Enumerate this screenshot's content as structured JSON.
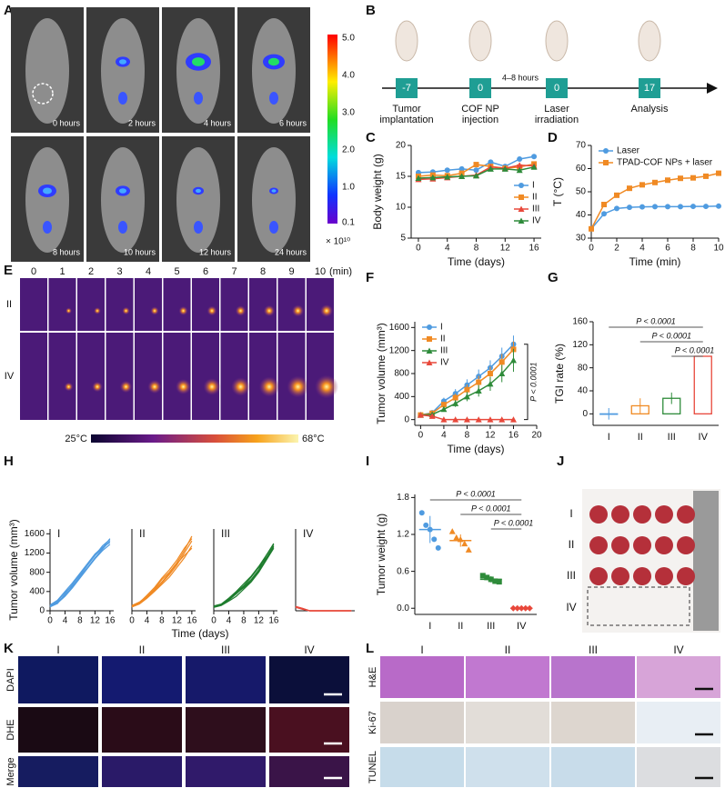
{
  "figure": {
    "panel_labels": [
      "A",
      "B",
      "C",
      "D",
      "E",
      "F",
      "G",
      "H",
      "I",
      "J",
      "K",
      "L"
    ]
  },
  "panel_a": {
    "times": [
      "0 hours",
      "2 hours",
      "4 hours",
      "6 hours",
      "8 hours",
      "10 hours",
      "12 hours",
      "24 hours"
    ],
    "colorbar_labels": [
      "5.0",
      "4.0",
      "3.0",
      "2.0",
      "1.0",
      "0.1"
    ],
    "colorbar_unit": "× 10¹⁰"
  },
  "panel_b": {
    "steps": [
      {
        "day": "-7",
        "label": [
          "Tumor",
          "implantation"
        ]
      },
      {
        "day": "0",
        "label": [
          "COF NP",
          "injection"
        ]
      },
      {
        "day": "0",
        "label": [
          "Laser",
          "irradiation"
        ]
      },
      {
        "day": "17",
        "label": [
          "Analysis"
        ]
      }
    ],
    "interval": "4–8 hours"
  },
  "panel_e": {
    "minutes": [
      "0",
      "1",
      "2",
      "3",
      "4",
      "5",
      "6",
      "7",
      "8",
      "9",
      "10"
    ],
    "unit": "(min)",
    "rows": [
      "II",
      "IV"
    ],
    "scale": [
      "25°C",
      "68°C"
    ]
  },
  "panel_h": {
    "ylabel": "Tumor volume (mm³)",
    "xlabel": "Time (days)"
  },
  "panel_j": {
    "rows": [
      "I",
      "II",
      "III",
      "IV"
    ]
  },
  "panel_k": {
    "columns": [
      "I",
      "II",
      "III",
      "IV"
    ],
    "rows": [
      "DAPI",
      "DHE",
      "Merge"
    ]
  },
  "panel_l": {
    "columns": [
      "I",
      "II",
      "III",
      "IV"
    ],
    "rows": [
      "H&E",
      "Ki-67",
      "TUNEL"
    ]
  },
  "chart_data": [
    {
      "type": "line",
      "ylabel": "Body weight (g)",
      "xlabel": "Time (days)",
      "x": [
        0,
        2,
        4,
        6,
        8,
        10,
        12,
        14,
        16
      ],
      "xlim": [
        -1,
        17
      ],
      "xticks": [
        0,
        4,
        8,
        12,
        16
      ],
      "ylim": [
        5,
        20
      ],
      "yticks": [
        5,
        10,
        15,
        20
      ],
      "legend": "lower right",
      "series": [
        {
          "name": "I",
          "color": "#4f9be0",
          "marker": "circle",
          "values": [
            15.6,
            15.7,
            16.0,
            16.2,
            16.0,
            17.3,
            16.6,
            17.8,
            18.2
          ]
        },
        {
          "name": "II",
          "color": "#f08a24",
          "marker": "square",
          "values": [
            15.0,
            15.2,
            15.1,
            15.5,
            16.9,
            16.6,
            16.3,
            16.5,
            17.0
          ]
        },
        {
          "name": "III",
          "color": "#e8483b",
          "marker": "triangle",
          "values": [
            14.5,
            14.6,
            14.8,
            15.0,
            15.2,
            16.5,
            16.3,
            16.8,
            16.7
          ]
        },
        {
          "name": "IV",
          "color": "#2e8b3a",
          "marker": "triangle",
          "values": [
            14.7,
            14.8,
            14.9,
            15.0,
            15.1,
            16.2,
            16.2,
            16.0,
            16.5
          ]
        }
      ]
    },
    {
      "type": "line",
      "ylabel": "T (°C)",
      "xlabel": "Time (min)",
      "x": [
        0,
        1,
        2,
        3,
        4,
        5,
        6,
        7,
        8,
        9,
        10
      ],
      "xlim": [
        0,
        10
      ],
      "xticks": [
        0,
        2,
        4,
        6,
        8,
        10
      ],
      "ylim": [
        30,
        70
      ],
      "yticks": [
        30,
        40,
        50,
        60,
        70
      ],
      "legend": "upper left",
      "series": [
        {
          "name": "Laser",
          "color": "#4f9be0",
          "marker": "circle",
          "values": [
            34,
            40.5,
            42.8,
            43.3,
            43.5,
            43.6,
            43.6,
            43.6,
            43.7,
            43.7,
            43.8
          ]
        },
        {
          "name": "TPAD-COF NPs + laser",
          "color": "#f08a24",
          "marker": "square",
          "values": [
            34,
            44.5,
            48.5,
            51.5,
            53,
            54,
            55,
            55.8,
            56,
            56.7,
            58
          ]
        }
      ]
    },
    {
      "type": "line",
      "ylabel": "Tumor volume (mm³)",
      "xlabel": "Time (days)",
      "x": [
        0,
        2,
        4,
        6,
        8,
        10,
        12,
        14,
        16
      ],
      "xlim": [
        -1,
        20
      ],
      "xticks": [
        0,
        4,
        8,
        12,
        16,
        20
      ],
      "ylim": [
        -100,
        1700
      ],
      "yticks": [
        0,
        400,
        800,
        1200,
        1600
      ],
      "legend": "upper left",
      "annotation": "P < 0.0001",
      "series": [
        {
          "name": "I",
          "color": "#4f9be0",
          "marker": "circle",
          "values": [
            80,
            120,
            320,
            450,
            600,
            750,
            900,
            1100,
            1310
          ],
          "errors": [
            20,
            30,
            60,
            80,
            100,
            120,
            130,
            150,
            150
          ]
        },
        {
          "name": "II",
          "color": "#f08a24",
          "marker": "square",
          "values": [
            80,
            110,
            260,
            380,
            520,
            650,
            800,
            1000,
            1220
          ],
          "errors": [
            20,
            30,
            50,
            70,
            90,
            110,
            120,
            140,
            140
          ]
        },
        {
          "name": "III",
          "color": "#2e8b3a",
          "marker": "triangle",
          "values": [
            80,
            90,
            180,
            280,
            400,
            500,
            620,
            800,
            1030
          ],
          "errors": [
            20,
            25,
            40,
            60,
            80,
            100,
            120,
            150,
            200
          ]
        },
        {
          "name": "IV",
          "color": "#e8483b",
          "marker": "triangle",
          "values": [
            80,
            60,
            0,
            0,
            0,
            0,
            0,
            0,
            0
          ]
        }
      ]
    },
    {
      "type": "bar",
      "ylabel": "TGI rate (%)",
      "categories": [
        "I",
        "II",
        "III",
        "IV"
      ],
      "values": [
        0,
        14,
        27,
        100
      ],
      "errors": [
        10,
        13,
        10,
        0
      ],
      "colors": [
        "#4f9be0",
        "#f08a24",
        "#2e8b3a",
        "#e8483b"
      ],
      "ylim": [
        -20,
        160
      ],
      "yticks": [
        0,
        40,
        80,
        120,
        160
      ],
      "annotations": [
        "P < 0.0001",
        "P < 0.0001",
        "P < 0.0001"
      ]
    },
    {
      "type": "line",
      "title": "I",
      "x": [
        0,
        2,
        4,
        6,
        8,
        10,
        12,
        14,
        16
      ],
      "xlim": [
        0,
        17
      ],
      "xticks": [
        0,
        4,
        8,
        12,
        16
      ],
      "ylim": [
        0,
        1700
      ],
      "yticks": [
        0,
        400,
        800,
        1200,
        1600
      ],
      "series": [
        {
          "color": "#4f9be0",
          "values": [
            80,
            150,
            350,
            550,
            750,
            950,
            1150,
            1300,
            1500
          ]
        },
        {
          "color": "#4f9be0",
          "values": [
            100,
            200,
            380,
            520,
            700,
            900,
            1100,
            1280,
            1450
          ]
        },
        {
          "color": "#4f9be0",
          "values": [
            80,
            180,
            320,
            500,
            720,
            950,
            1150,
            1350,
            1480
          ]
        },
        {
          "color": "#4f9be0",
          "values": [
            120,
            220,
            400,
            580,
            780,
            980,
            1180,
            1320,
            1420
          ]
        },
        {
          "color": "#4f9be0",
          "values": [
            90,
            160,
            300,
            480,
            680,
            880,
            1080,
            1250,
            1380
          ]
        }
      ]
    },
    {
      "type": "line",
      "title": "II",
      "x": [
        0,
        2,
        4,
        6,
        8,
        10,
        12,
        14,
        16
      ],
      "xlim": [
        0,
        17
      ],
      "xticks": [
        0,
        4,
        8,
        12,
        16
      ],
      "ylim": [
        0,
        1700
      ],
      "series": [
        {
          "color": "#f08a24",
          "values": [
            80,
            150,
            300,
            450,
            650,
            800,
            1000,
            1250,
            1550
          ]
        },
        {
          "color": "#f08a24",
          "values": [
            100,
            160,
            280,
            420,
            580,
            750,
            950,
            1200,
            1450
          ]
        },
        {
          "color": "#f08a24",
          "values": [
            80,
            140,
            260,
            400,
            550,
            700,
            900,
            1100,
            1350
          ]
        },
        {
          "color": "#f08a24",
          "values": [
            90,
            170,
            320,
            480,
            680,
            850,
            1050,
            1300,
            1500
          ]
        },
        {
          "color": "#f08a24",
          "values": [
            110,
            180,
            300,
            430,
            600,
            780,
            980,
            1150,
            1300
          ]
        }
      ]
    },
    {
      "type": "line",
      "title": "III",
      "x": [
        0,
        2,
        4,
        6,
        8,
        10,
        12,
        14,
        16
      ],
      "xlim": [
        0,
        17
      ],
      "xticks": [
        0,
        4,
        8,
        12,
        16
      ],
      "ylim": [
        0,
        1700
      ],
      "series": [
        {
          "color": "#1e7d2e",
          "values": [
            80,
            120,
            220,
            350,
            500,
            650,
            850,
            1150,
            1400
          ]
        },
        {
          "color": "#1e7d2e",
          "values": [
            90,
            130,
            250,
            380,
            520,
            700,
            900,
            1100,
            1350
          ]
        },
        {
          "color": "#1e7d2e",
          "values": [
            70,
            110,
            200,
            300,
            450,
            600,
            800,
            1050,
            1300
          ]
        },
        {
          "color": "#1e7d2e",
          "values": [
            100,
            140,
            260,
            400,
            560,
            720,
            920,
            1150,
            1380
          ]
        },
        {
          "color": "#1e7d2e",
          "values": [
            80,
            120,
            230,
            360,
            480,
            620,
            830,
            1080,
            1330
          ]
        }
      ]
    },
    {
      "type": "line",
      "title": "IV",
      "x": [
        0,
        2,
        4,
        6,
        8,
        10,
        12,
        14,
        16
      ],
      "xlim": [
        0,
        17
      ],
      "ylim": [
        0,
        1700
      ],
      "series": [
        {
          "color": "#e8483b",
          "values": [
            80,
            40,
            0,
            0,
            0,
            0,
            0,
            0,
            0
          ]
        },
        {
          "color": "#e8483b",
          "values": [
            90,
            50,
            0,
            0,
            0,
            0,
            0,
            0,
            0
          ]
        },
        {
          "color": "#e8483b",
          "values": [
            70,
            35,
            0,
            0,
            0,
            0,
            0,
            0,
            0
          ]
        },
        {
          "color": "#e8483b",
          "values": [
            85,
            45,
            0,
            0,
            0,
            0,
            0,
            0,
            0
          ]
        },
        {
          "color": "#e8483b",
          "values": [
            75,
            30,
            0,
            0,
            0,
            0,
            0,
            0,
            0
          ]
        }
      ]
    },
    {
      "type": "dot",
      "ylabel": "Tumor weight (g)",
      "categories": [
        "I",
        "II",
        "III",
        "IV"
      ],
      "points": [
        [
          1.55,
          1.35,
          1.28,
          1.12,
          0.98
        ],
        [
          1.25,
          1.15,
          1.12,
          1.05,
          0.95
        ],
        [
          0.53,
          0.5,
          0.47,
          0.44,
          0.43
        ],
        [
          0,
          0,
          0,
          0,
          0
        ]
      ],
      "means": [
        1.28,
        1.1,
        0.47,
        0
      ],
      "sds": [
        0.22,
        0.1,
        0.05,
        0
      ],
      "colors": [
        "#4f9be0",
        "#f08a24",
        "#2e8b3a",
        "#e8483b"
      ],
      "markers": [
        "circle",
        "triangle",
        "square",
        "diamond"
      ],
      "ylim": [
        -0.1,
        1.85
      ],
      "yticks": [
        {
          "value": 0,
          "label": "0.0"
        },
        0.6,
        1.2,
        1.8
      ],
      "annotations": [
        "P < 0.0001",
        "P < 0.0001",
        "P < 0.0001"
      ]
    }
  ]
}
